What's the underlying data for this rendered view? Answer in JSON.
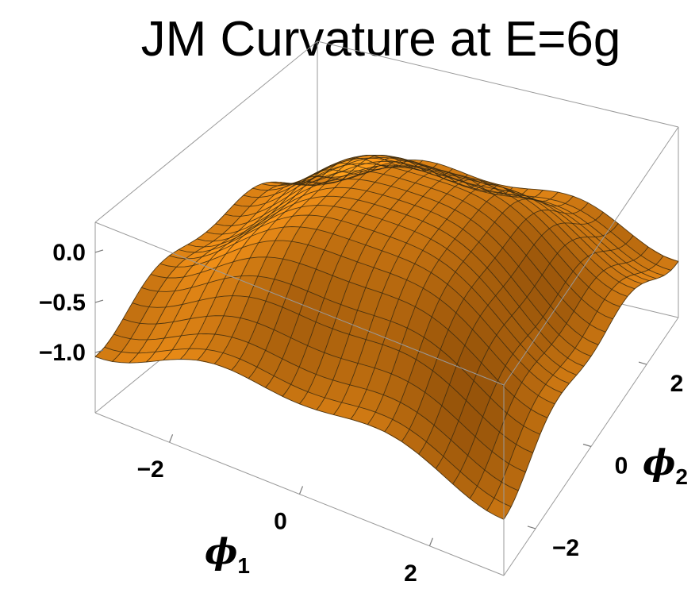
{
  "chart_data": {
    "type": "surface3d",
    "title": "JM Curvature at E=6g",
    "x_axis": {
      "symbol": "ϕ",
      "subscript": "1",
      "range": [
        -3.14159,
        3.14159
      ],
      "ticks": [
        -2,
        0,
        2
      ],
      "tick_labels": [
        "−2",
        "0",
        "2"
      ]
    },
    "y_axis": {
      "symbol": "ϕ",
      "subscript": "2",
      "range": [
        -3.14159,
        3.14159
      ],
      "ticks": [
        -2,
        0,
        2
      ],
      "tick_labels": [
        "−2",
        "0",
        "2"
      ]
    },
    "z_axis": {
      "range": [
        -1.6,
        0.3
      ],
      "ticks": [
        0.0,
        -0.5,
        -1.0
      ],
      "tick_labels": [
        "0.0",
        "−0.5",
        "−1.0"
      ]
    },
    "mesh_lines": 24,
    "surface_color": "#f0a41c",
    "mesh_color": "#3a2a10",
    "box_color": "#9a9a9a",
    "surface_model": {
      "constant": -0.35,
      "cos_phi1": 0.32,
      "cos_phi2": 0.32,
      "cos_phi1_cos_phi2": 0.15,
      "cos_2phi1": -0.1,
      "cos_2phi2": -0.1
    }
  }
}
